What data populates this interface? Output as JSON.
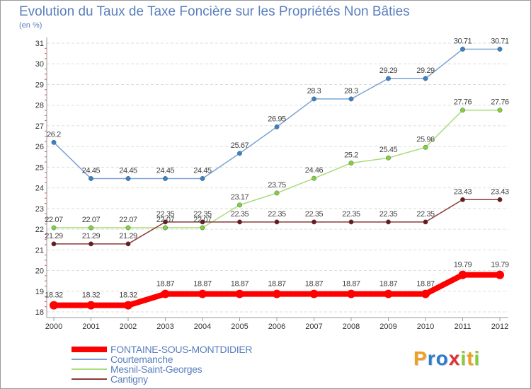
{
  "chart_data": {
    "type": "line",
    "title": "Evolution du Taux de Taxe Foncière sur les Propriétés Non Bâties",
    "ylabel": "(en %)",
    "xlabel": "",
    "ylim": [
      18,
      31
    ],
    "yticks": [
      "18",
      "19",
      "20",
      "21",
      "22",
      "23",
      "24",
      "25",
      "26",
      "27",
      "28",
      "29",
      "30",
      "31"
    ],
    "x": [
      "2000",
      "2001",
      "2002",
      "2003",
      "2004",
      "2005",
      "2006",
      "2007",
      "2008",
      "2009",
      "2010",
      "2011",
      "2012"
    ],
    "grid": "horizontal",
    "legend_position": "bottom-left",
    "series": [
      {
        "name": "FONTAINE-SOUS-MONTDIDIER",
        "color": "#ff0000",
        "marker": "#ff0000",
        "width": 8,
        "values": [
          18.32,
          18.32,
          18.32,
          18.87,
          18.87,
          18.87,
          18.87,
          18.87,
          18.87,
          18.87,
          18.87,
          19.79,
          19.79
        ],
        "labels": [
          "18.32",
          "18.32",
          "18.32",
          "18.87",
          "18.87",
          "18.87",
          "18.87",
          "18.87",
          "18.87",
          "18.87",
          "18.87",
          "19.79",
          "19.79"
        ]
      },
      {
        "name": "Courtemanche",
        "color": "#7aa2d4",
        "marker": "#3a82c8",
        "width": 1.5,
        "values": [
          26.2,
          24.45,
          24.45,
          24.45,
          24.45,
          25.67,
          26.95,
          28.3,
          28.3,
          29.29,
          29.29,
          30.71,
          30.71
        ],
        "labels": [
          "26.2",
          "24.45",
          "24.45",
          "24.45",
          "24.45",
          "25.67",
          "26.95",
          "28.3",
          "28.3",
          "29.29",
          "29.29",
          "30.71",
          "30.71"
        ]
      },
      {
        "name": "Mesnil-Saint-Georges",
        "color": "#a8dc7a",
        "marker": "#7fd33a",
        "width": 1.5,
        "values": [
          22.07,
          22.07,
          22.07,
          22.07,
          22.07,
          23.17,
          23.75,
          24.46,
          25.2,
          25.45,
          25.96,
          27.76,
          27.76
        ],
        "labels": [
          "22.07",
          "22.07",
          "22.07",
          "22.07",
          "22.07",
          "23.17",
          "23.75",
          "24.46",
          "25.2",
          "25.45",
          "25.96",
          "27.76",
          "27.76"
        ]
      },
      {
        "name": "Cantigny",
        "color": "#8b3a3a",
        "marker": "#6a1a1a",
        "width": 1.5,
        "values": [
          21.29,
          21.29,
          21.29,
          22.35,
          22.35,
          22.35,
          22.35,
          22.35,
          22.35,
          22.35,
          22.35,
          23.43,
          23.43
        ],
        "labels": [
          "21.29",
          "21.29",
          "21.29",
          "22.35",
          "22.35",
          "22.35",
          "22.35",
          "22.35",
          "22.35",
          "22.35",
          "22.35",
          "23.43",
          "23.43"
        ]
      }
    ]
  },
  "logo": {
    "letters": [
      {
        "ch": "P",
        "color": "#f0a020"
      },
      {
        "ch": "r",
        "color": "#2a7ad0"
      },
      {
        "ch": "o",
        "color": "#2a7ad0"
      },
      {
        "ch": "x",
        "color": "#e03030"
      },
      {
        "ch": "i",
        "color": "#8acd3a"
      },
      {
        "ch": "t",
        "color": "#f0a020"
      },
      {
        "ch": "i",
        "color": "#8acd3a"
      }
    ]
  }
}
